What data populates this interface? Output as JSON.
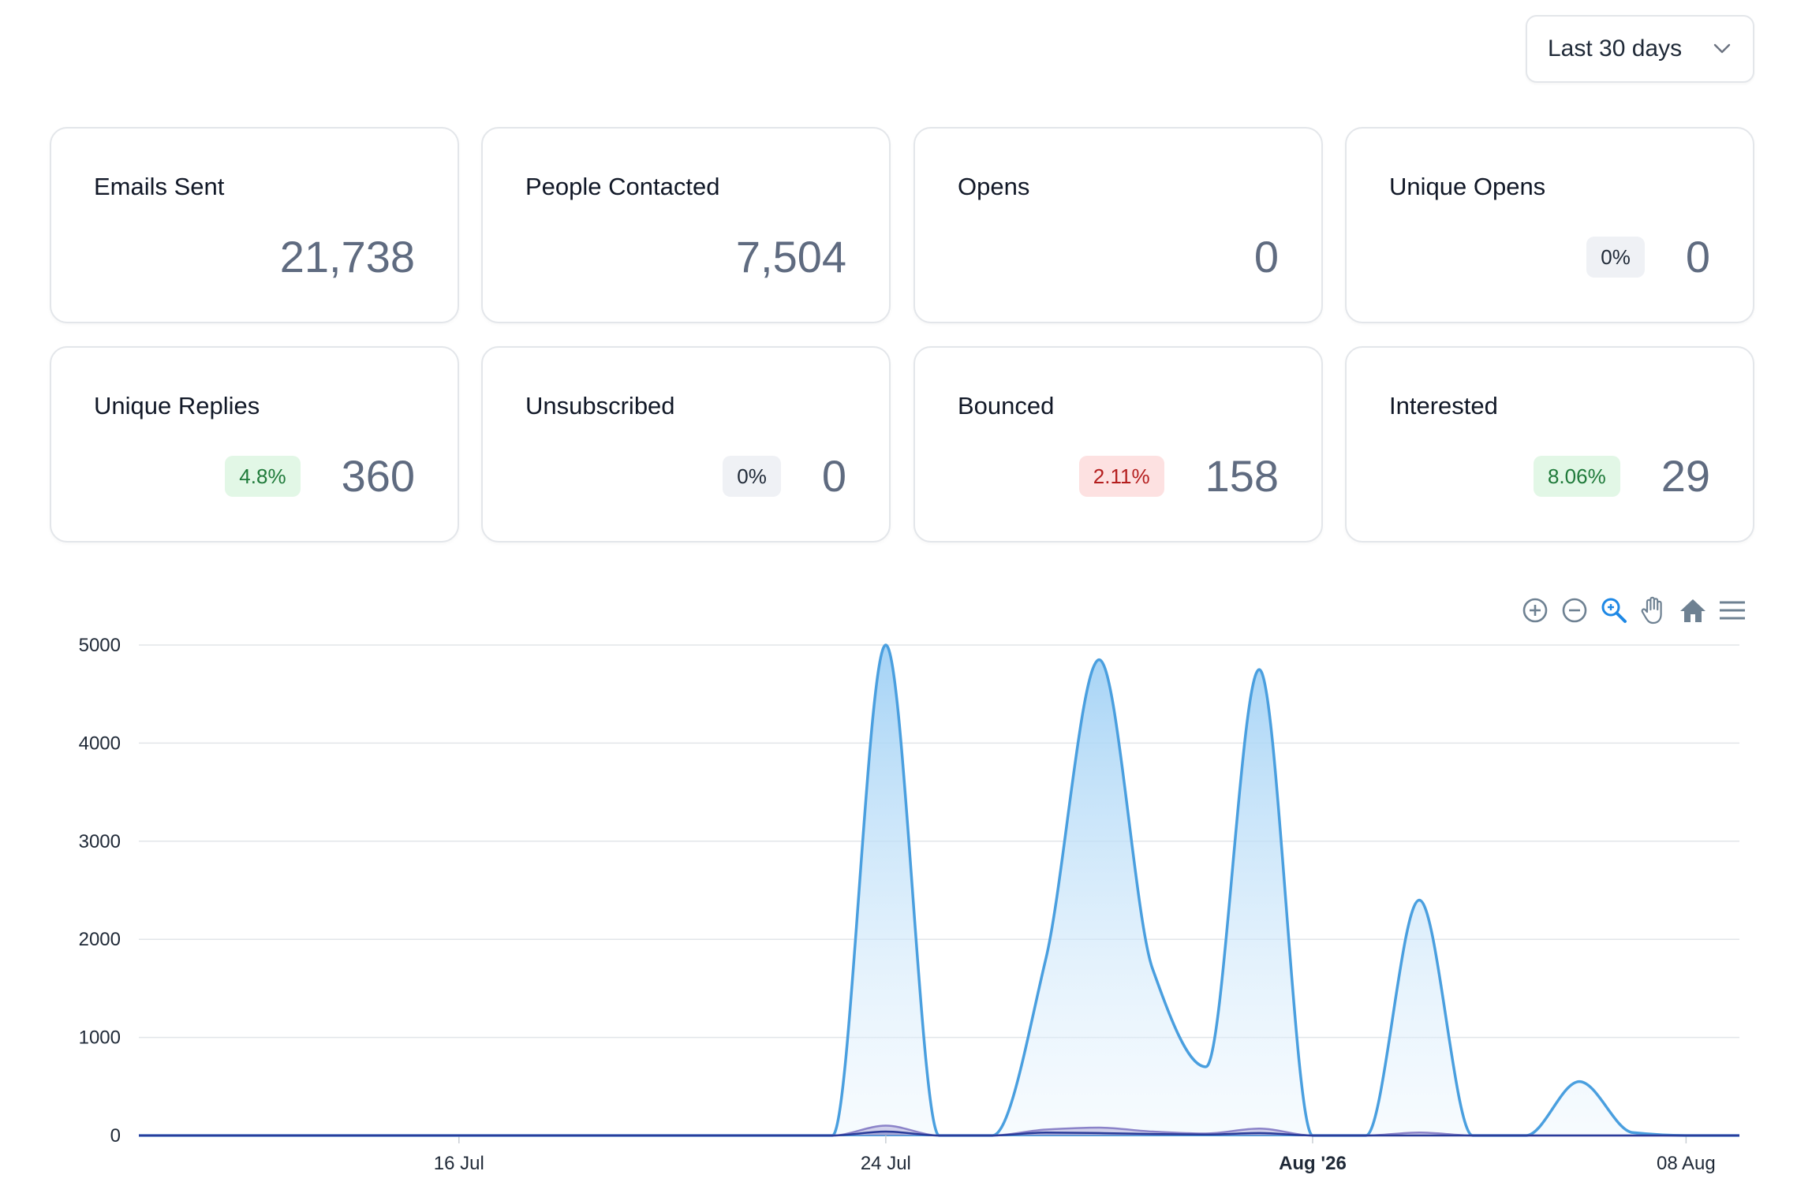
{
  "date_range": {
    "selected": "Last 30 days"
  },
  "stats": [
    {
      "label": "Emails Sent",
      "value": "21,738",
      "badge": null,
      "badge_tone": null
    },
    {
      "label": "People Contacted",
      "value": "7,504",
      "badge": null,
      "badge_tone": null
    },
    {
      "label": "Opens",
      "value": "0",
      "badge": null,
      "badge_tone": null
    },
    {
      "label": "Unique Opens",
      "value": "0",
      "badge": "0%",
      "badge_tone": "neutral"
    },
    {
      "label": "Unique Replies",
      "value": "360",
      "badge": "4.8%",
      "badge_tone": "green"
    },
    {
      "label": "Unsubscribed",
      "value": "0",
      "badge": "0%",
      "badge_tone": "neutral"
    },
    {
      "label": "Bounced",
      "value": "158",
      "badge": "2.11%",
      "badge_tone": "red"
    },
    {
      "label": "Interested",
      "value": "29",
      "badge": "8.06%",
      "badge_tone": "green"
    }
  ],
  "chart_toolbar": {
    "icons": [
      "zoom-in-icon",
      "zoom-out-icon",
      "selection-zoom-icon",
      "pan-hand-icon",
      "reset-home-icon",
      "menu-icon"
    ]
  },
  "chart_data": {
    "type": "area",
    "y_ticks": [
      "5000",
      "4000",
      "3000",
      "2000",
      "1000",
      "0"
    ],
    "ylim": [
      0,
      5000
    ],
    "x_ticks": [
      {
        "label": "16 Jul",
        "day": "2026-07-16",
        "bold": false
      },
      {
        "label": "24 Jul",
        "day": "2026-07-24",
        "bold": false
      },
      {
        "label": "Aug '26",
        "day": "2026-08-01",
        "bold": true
      },
      {
        "label": "08 Aug",
        "day": "2026-08-08",
        "bold": false
      }
    ],
    "xlim": [
      "2026-07-10",
      "2026-08-09"
    ],
    "grid": true,
    "legend": "none",
    "colors": {
      "primary": "#4a9fdf",
      "secondary": "#8b83c9",
      "tertiary": "#2b3c9a"
    },
    "series": [
      {
        "x": [
          "2026-07-10",
          "2026-07-22",
          "2026-07-23",
          "2026-07-24",
          "2026-07-25",
          "2026-07-26",
          "2026-07-27",
          "2026-07-28",
          "2026-07-29",
          "2026-07-30",
          "2026-07-31",
          "2026-08-01",
          "2026-08-02",
          "2026-08-03",
          "2026-08-04",
          "2026-08-05",
          "2026-08-06",
          "2026-08-07",
          "2026-08-08",
          "2026-08-09"
        ],
        "values": [
          0,
          0,
          0,
          5000,
          0,
          0,
          1800,
          4850,
          1700,
          700,
          4750,
          0,
          0,
          2400,
          0,
          0,
          550,
          30,
          0,
          0
        ]
      },
      {
        "x": [
          "2026-07-10",
          "2026-07-23",
          "2026-07-24",
          "2026-07-25",
          "2026-07-26",
          "2026-07-27",
          "2026-07-28",
          "2026-07-29",
          "2026-07-30",
          "2026-07-31",
          "2026-08-01",
          "2026-08-02",
          "2026-08-03",
          "2026-08-04",
          "2026-08-09"
        ],
        "values": [
          0,
          0,
          100,
          0,
          0,
          60,
          80,
          40,
          20,
          70,
          0,
          0,
          30,
          0,
          0
        ]
      },
      {
        "x": [
          "2026-07-10",
          "2026-07-23",
          "2026-07-24",
          "2026-07-25",
          "2026-07-26",
          "2026-07-27",
          "2026-07-28",
          "2026-07-29",
          "2026-07-30",
          "2026-07-31",
          "2026-08-01",
          "2026-08-09"
        ],
        "values": [
          0,
          0,
          40,
          0,
          0,
          30,
          25,
          15,
          10,
          25,
          0,
          0
        ]
      }
    ]
  }
}
